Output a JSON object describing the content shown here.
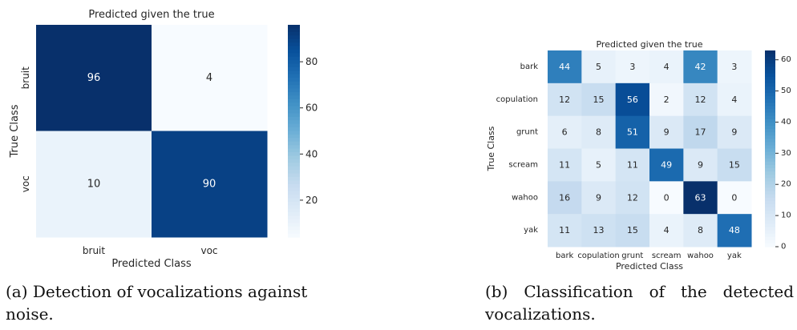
{
  "chart_data": [
    {
      "type": "heatmap",
      "title": "Predicted given the true",
      "xlabel": "Predicted Class",
      "ylabel": "True Class",
      "x_labels": [
        "bruit",
        "voc"
      ],
      "y_labels": [
        "bruit",
        "voc"
      ],
      "values": [
        [
          96,
          4
        ],
        [
          10,
          90
        ]
      ],
      "colormap": "Blues",
      "vmin": 4,
      "vmax": 96,
      "colorbar_ticks": [
        20,
        40,
        60,
        80
      ]
    },
    {
      "type": "heatmap",
      "title": "Predicted given the true",
      "xlabel": "Predicted Class",
      "ylabel": "True Class",
      "x_labels": [
        "bark",
        "copulation",
        "grunt",
        "scream",
        "wahoo",
        "yak"
      ],
      "y_labels": [
        "bark",
        "copulation",
        "grunt",
        "scream",
        "wahoo",
        "yak"
      ],
      "values": [
        [
          44,
          5,
          3,
          4,
          42,
          3
        ],
        [
          12,
          15,
          56,
          2,
          12,
          4
        ],
        [
          6,
          8,
          51,
          9,
          17,
          9
        ],
        [
          11,
          5,
          11,
          49,
          9,
          15
        ],
        [
          16,
          9,
          12,
          0,
          63,
          0
        ],
        [
          11,
          13,
          15,
          4,
          8,
          48
        ]
      ],
      "colormap": "Blues",
      "vmin": 0,
      "vmax": 63,
      "colorbar_ticks": [
        0,
        10,
        20,
        30,
        40,
        50,
        60
      ]
    }
  ],
  "captions": {
    "a": "(a) Detection of vocalizations against noise.",
    "b": "(b) Classification of the detected vocalizations."
  }
}
